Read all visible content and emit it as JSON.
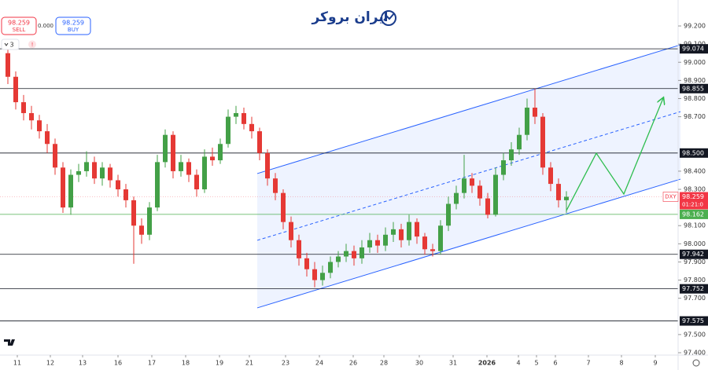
{
  "header": {
    "brand": "ایران بروکر",
    "sell_price": 98.259,
    "sell_label": "SELL",
    "spread": {
      "value": 0,
      "label": "0.000"
    },
    "buy_price": 98.259,
    "buy_label": "BUY",
    "interval": "3",
    "alert": "!"
  },
  "chart_data": {
    "type": "candlestick",
    "symbol": "DXY",
    "countdown": "01:21:0",
    "up_color": "#43a047",
    "down_color": "#e53935",
    "open": [
      99.05,
      98.92,
      98.78,
      98.72,
      98.68,
      98.62,
      98.55,
      98.42,
      98.2,
      98.38,
      98.4,
      98.45,
      98.36,
      98.42,
      98.35,
      98.3,
      98.24,
      98.1,
      98.05,
      98.2,
      98.45,
      98.6,
      98.4,
      98.45,
      98.38,
      98.3,
      98.48,
      98.46,
      98.55,
      98.7,
      98.72,
      98.66,
      98.62,
      98.5,
      98.36,
      98.28,
      98.12,
      98.02,
      97.92,
      97.86,
      97.8,
      97.84,
      97.9,
      97.93,
      97.96,
      97.92,
      97.98,
      98.02,
      97.99,
      98.05,
      98.08,
      98.02,
      98.12,
      98.04,
      97.97,
      97.96,
      98.1,
      98.22,
      98.28,
      98.36,
      98.32,
      98.25,
      98.16,
      98.38,
      98.46,
      98.52,
      98.6,
      98.75,
      98.7,
      98.42,
      98.33,
      98.24
    ],
    "high": [
      99.12,
      98.95,
      98.82,
      98.76,
      98.71,
      98.66,
      98.58,
      98.45,
      98.41,
      98.44,
      98.51,
      98.48,
      98.45,
      98.44,
      98.38,
      98.33,
      98.26,
      98.14,
      98.23,
      98.49,
      98.63,
      98.62,
      98.49,
      98.47,
      98.41,
      98.52,
      98.53,
      98.58,
      98.74,
      98.76,
      98.75,
      98.7,
      98.64,
      98.52,
      98.39,
      98.3,
      98.15,
      98.05,
      97.95,
      97.9,
      97.88,
      97.93,
      97.96,
      98.0,
      97.99,
      98.02,
      98.06,
      98.05,
      98.09,
      98.12,
      98.11,
      98.16,
      98.14,
      98.06,
      98.0,
      98.13,
      98.26,
      98.32,
      98.49,
      98.39,
      98.35,
      98.28,
      98.42,
      98.5,
      98.56,
      98.64,
      98.8,
      98.855,
      98.72,
      98.45,
      98.36,
      98.29
    ],
    "low": [
      98.88,
      98.74,
      98.68,
      98.63,
      98.58,
      98.5,
      98.38,
      98.17,
      98.16,
      98.34,
      98.37,
      98.33,
      98.32,
      98.31,
      98.26,
      98.2,
      97.89,
      98.0,
      98.02,
      98.18,
      98.42,
      98.36,
      98.37,
      98.34,
      98.26,
      98.28,
      98.43,
      98.44,
      98.53,
      98.66,
      98.63,
      98.58,
      98.46,
      98.32,
      98.24,
      98.08,
      97.98,
      97.88,
      97.82,
      97.76,
      97.77,
      97.81,
      97.87,
      97.9,
      97.88,
      97.89,
      97.95,
      97.95,
      97.96,
      98.01,
      97.98,
      97.99,
      98.0,
      97.94,
      97.93,
      97.94,
      98.07,
      98.19,
      98.25,
      98.28,
      98.21,
      98.14,
      98.15,
      98.35,
      98.43,
      98.49,
      98.57,
      98.66,
      98.38,
      98.29,
      98.2,
      98.17
    ],
    "close": [
      98.92,
      98.78,
      98.72,
      98.68,
      98.62,
      98.55,
      98.42,
      98.2,
      98.38,
      98.4,
      98.45,
      98.36,
      98.42,
      98.35,
      98.3,
      98.24,
      98.1,
      98.05,
      98.2,
      98.45,
      98.6,
      98.4,
      98.45,
      98.38,
      98.3,
      98.48,
      98.46,
      98.55,
      98.7,
      98.72,
      98.66,
      98.62,
      98.5,
      98.36,
      98.28,
      98.12,
      98.02,
      97.92,
      97.86,
      97.8,
      97.84,
      97.9,
      97.93,
      97.96,
      97.92,
      97.98,
      98.02,
      97.99,
      98.05,
      98.08,
      98.02,
      98.12,
      98.04,
      97.97,
      97.96,
      98.1,
      98.22,
      98.28,
      98.36,
      98.32,
      98.25,
      98.16,
      98.38,
      98.46,
      98.52,
      98.6,
      98.75,
      98.7,
      98.42,
      98.33,
      98.24,
      98.259
    ],
    "xlim": [
      -1,
      85
    ],
    "ylim": [
      97.387,
      99.343
    ],
    "xticks": [
      {
        "value": 1.2,
        "label": "11"
      },
      {
        "value": 5.4,
        "label": "12"
      },
      {
        "value": 9.5,
        "label": "13"
      },
      {
        "value": 14,
        "label": "16"
      },
      {
        "value": 18.3,
        "label": "17"
      },
      {
        "value": 22.6,
        "label": "18"
      },
      {
        "value": 26.9,
        "label": "19"
      },
      {
        "value": 30.7,
        "label": "21"
      },
      {
        "value": 35.3,
        "label": "23"
      },
      {
        "value": 39.6,
        "label": "24"
      },
      {
        "value": 43.9,
        "label": "26"
      },
      {
        "value": 47.8,
        "label": "28"
      },
      {
        "value": 52.3,
        "label": "30"
      },
      {
        "value": 56.6,
        "label": "31"
      },
      {
        "value": 60.9,
        "label": "2026"
      },
      {
        "value": 64.9,
        "label": "4"
      },
      {
        "value": 67.2,
        "label": "5"
      },
      {
        "value": 69.6,
        "label": "6"
      },
      {
        "value": 73.8,
        "label": "7"
      },
      {
        "value": 78,
        "label": "8"
      },
      {
        "value": 82.3,
        "label": "9"
      }
    ],
    "yticks": [
      {
        "value": 99.2,
        "label": "99.200"
      },
      {
        "value": 99.1,
        "label": "99.100"
      },
      {
        "value": 99,
        "label": "99.000"
      },
      {
        "value": 98.9,
        "label": "98.900"
      },
      {
        "value": 98.8,
        "label": "98.800"
      },
      {
        "value": 98.7,
        "label": "98.700"
      },
      {
        "value": 98.4,
        "label": "98.400"
      },
      {
        "value": 98.3,
        "label": "98.300"
      },
      {
        "value": 98.1,
        "label": "98.100"
      },
      {
        "value": 98,
        "label": "98.000"
      },
      {
        "value": 97.9,
        "label": "97.900"
      },
      {
        "value": 97.8,
        "label": "97.800"
      },
      {
        "value": 97.7,
        "label": "97.700"
      },
      {
        "value": 97.5,
        "label": "97.500"
      },
      {
        "value": 97.4,
        "label": "97.400"
      }
    ],
    "levels": [
      99.074,
      98.855,
      {
        "value": 98.5,
        "label": "98.500"
      },
      97.942,
      97.752,
      97.575
    ],
    "level_color": "#131722",
    "support": 98.162,
    "support_color": "#4caf50",
    "last_price": 98.259,
    "last_color": "#f23645",
    "channel": {
      "color": "#2962ff",
      "upper": {
        "x": [
          31.7,
          85.5
        ],
        "y": [
          98.387,
          99.096
        ]
      },
      "middle": {
        "x": [
          31.7,
          85.5
        ],
        "y": [
          98.019,
          98.728
        ]
      },
      "lower": {
        "x": [
          31.7,
          85.5
        ],
        "y": [
          97.647,
          98.356
        ]
      }
    },
    "projection": {
      "color": "#2ebd4f",
      "x": [
        71,
        74.8,
        78.3,
        83.3
      ],
      "y": [
        98.183,
        98.499,
        98.274,
        98.802
      ]
    }
  }
}
